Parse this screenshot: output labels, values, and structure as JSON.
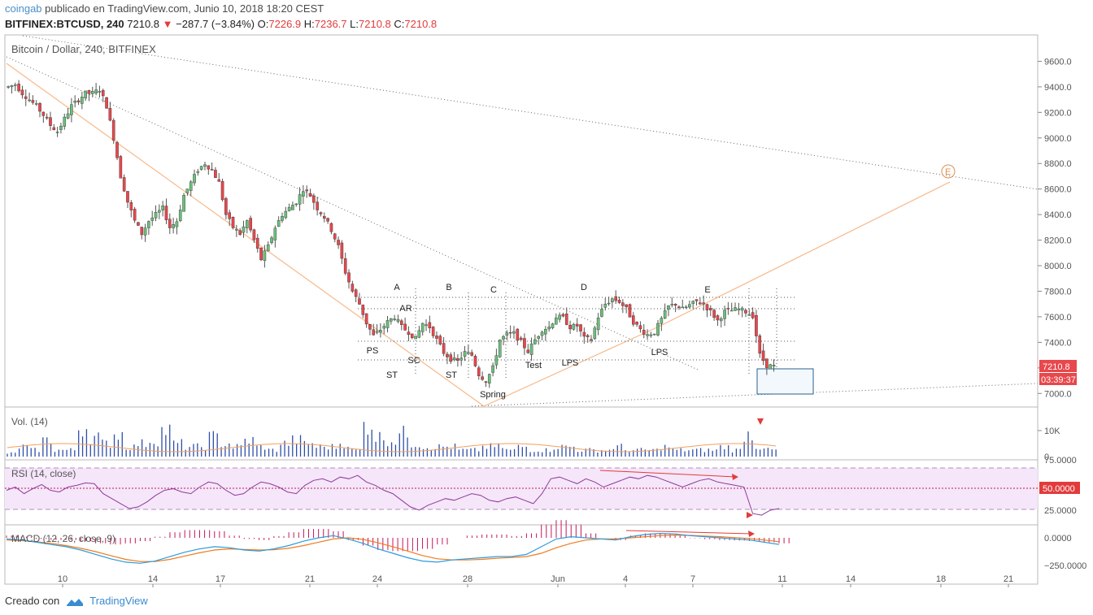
{
  "header": {
    "user": "coingab",
    "published": " publicado en TradingView.com, Junio 10, 2018 18:20 CEST",
    "symbol": "BITFINEX:BTCUSD, 240",
    "last": "7210.8",
    "change": "−287.7 (−3.84%)",
    "o_label": "O:",
    "o": "7226.9",
    "h_label": "H:",
    "h": "7236.7",
    "l_label": "L:",
    "l": "7210.8",
    "c_label": "C:",
    "c": "7210.8"
  },
  "footer": {
    "created_with": "Creado con",
    "brand": "TradingView"
  },
  "colors": {
    "up": "#55cc77",
    "down": "#e8474c",
    "candle_body_up": "#6bbf7b",
    "line_orange": "#f7b98a",
    "rsi_band": "#f3e2f7",
    "rsi_line": "#8e3a9a",
    "macd_line": "#2e9bdc",
    "signal_line": "#f07b1f",
    "vol": "#2f4fa8",
    "vol_ma": "#f3a05a",
    "hist": "#c2185b"
  },
  "chart_data": {
    "type": "candlestick",
    "title": "Bitcoin / Dollar, 240, BITFINEX",
    "ylabel": "",
    "ylim": [
      6900,
      9800
    ],
    "yticks": [
      "9600.0",
      "9400.0",
      "9200.0",
      "9000.0",
      "8800.0",
      "8600.0",
      "8400.0",
      "8200.0",
      "8000.0",
      "7800.0",
      "7600.0",
      "7400.0",
      "7200.0",
      "7000.0"
    ],
    "xticks": [
      "10",
      "14",
      "17",
      "21",
      "24",
      "28",
      "Jun",
      "4",
      "7",
      "11",
      "14",
      "18",
      "21"
    ],
    "last_price": "7210.8",
    "countdown": "03:39:37",
    "annotations": [
      "A",
      "B",
      "C",
      "D",
      "E",
      "AR",
      "PS",
      "SC",
      "ST",
      "ST",
      "Spring",
      "Test",
      "LPS",
      "LPS"
    ],
    "price_path": [
      9400,
      9420,
      9350,
      9300,
      9250,
      9180,
      9100,
      9050,
      9150,
      9250,
      9300,
      9350,
      9350,
      9380,
      9250,
      9000,
      8700,
      8500,
      8350,
      8250,
      8350,
      8400,
      8450,
      8300,
      8350,
      8550,
      8650,
      8750,
      8800,
      8750,
      8650,
      8400,
      8300,
      8250,
      8350,
      8200,
      8050,
      8150,
      8300,
      8400,
      8450,
      8500,
      8600,
      8550,
      8450,
      8380,
      8280,
      8150,
      7950,
      7800,
      7700,
      7550,
      7450,
      7500,
      7560,
      7600,
      7520,
      7480,
      7430,
      7550,
      7520,
      7420,
      7320,
      7270,
      7250,
      7320,
      7300,
      7150,
      7100,
      7200,
      7420,
      7460,
      7470,
      7400,
      7330,
      7420,
      7500,
      7520,
      7600,
      7590,
      7520,
      7530,
      7430,
      7420,
      7600,
      7700,
      7740,
      7720,
      7660,
      7560,
      7500,
      7460,
      7480,
      7580,
      7680,
      7700,
      7660,
      7690,
      7720,
      7700,
      7640,
      7570,
      7640,
      7650,
      7660,
      7640,
      7610,
      7300,
      7220,
      7211
    ],
    "volume": {
      "label": "Vol. (14)",
      "yticks": [
        "10K",
        "0"
      ],
      "spikes": [
        0.1,
        0.3,
        0.2,
        0.5,
        0.2,
        0.2,
        0.9,
        0.6,
        0.4,
        0.7,
        0.3,
        0.4,
        0.5,
        0.8,
        0.4,
        0.3,
        0.3,
        0.6,
        0.4,
        0.3,
        0.5,
        0.3,
        0.2,
        0.4,
        0.5,
        0.4,
        0.3,
        0.3,
        0.4,
        0.2,
        1.0,
        0.6,
        0.5,
        0.7,
        0.4,
        0.3,
        0.3,
        0.3,
        0.2,
        0.2,
        0.3,
        0.3,
        0.2,
        0.3,
        0.2,
        0.2,
        0.3,
        0.3,
        0.2,
        0.2,
        0.2,
        0.3,
        0.2,
        0.2,
        0.2,
        0.3,
        0.2,
        0.2,
        0.2,
        0.2,
        0.3,
        0.2,
        0.7,
        0.3,
        0.2
      ]
    },
    "rsi": {
      "label": "RSI (14, close)",
      "yticks": [
        "75.0000",
        "50.0000",
        "25.0000"
      ],
      "current": "50.0000",
      "ylim": [
        0,
        100
      ],
      "values": [
        48,
        52,
        44,
        50,
        55,
        48,
        46,
        52,
        54,
        57,
        56,
        44,
        38,
        32,
        26,
        28,
        34,
        42,
        48,
        50,
        46,
        44,
        52,
        58,
        56,
        48,
        42,
        44,
        52,
        58,
        56,
        52,
        46,
        44,
        54,
        60,
        62,
        58,
        64,
        62,
        66,
        58,
        54,
        48,
        44,
        36,
        28,
        24,
        30,
        34,
        38,
        36,
        40,
        44,
        42,
        36,
        34,
        38,
        40,
        36,
        32,
        44,
        62,
        64,
        60,
        56,
        62,
        58,
        52,
        56,
        60,
        64,
        62,
        66,
        64,
        60,
        56,
        52,
        56,
        60,
        62,
        58,
        56,
        54,
        52,
        20,
        18,
        24,
        26
      ]
    },
    "macd": {
      "label": "MACD (12, 26, close, 9)",
      "yticks": [
        "0.0000",
        "−250.0000"
      ],
      "ylim": [
        -300,
        50
      ],
      "macd": [
        -10,
        -20,
        -40,
        -60,
        -80,
        -110,
        -150,
        -190,
        -220,
        -230,
        -210,
        -170,
        -130,
        -100,
        -80,
        -90,
        -110,
        -120,
        -100,
        -70,
        -30,
        0,
        20,
        -10,
        -50,
        -100,
        -140,
        -180,
        -210,
        -220,
        -200,
        -190,
        -180,
        -170,
        -170,
        -150,
        -80,
        -10,
        10,
        0,
        -10,
        -20,
        10,
        30,
        40,
        35,
        20,
        10,
        0,
        -10,
        -20,
        -40,
        -60
      ],
      "signal": [
        -20,
        -25,
        -35,
        -50,
        -70,
        -95,
        -125,
        -160,
        -195,
        -215,
        -215,
        -195,
        -165,
        -135,
        -110,
        -100,
        -105,
        -110,
        -108,
        -95,
        -70,
        -40,
        -10,
        0,
        -15,
        -45,
        -80,
        -120,
        -160,
        -190,
        -200,
        -200,
        -195,
        -185,
        -178,
        -170,
        -140,
        -90,
        -50,
        -20,
        -10,
        -10,
        0,
        10,
        20,
        25,
        22,
        16,
        10,
        2,
        -6,
        -20,
        -35
      ]
    }
  },
  "x_axis_labels": [
    "10",
    "14",
    "17",
    "21",
    "24",
    "28",
    "Jun",
    "4",
    "7",
    "11",
    "14",
    "18",
    "21"
  ]
}
